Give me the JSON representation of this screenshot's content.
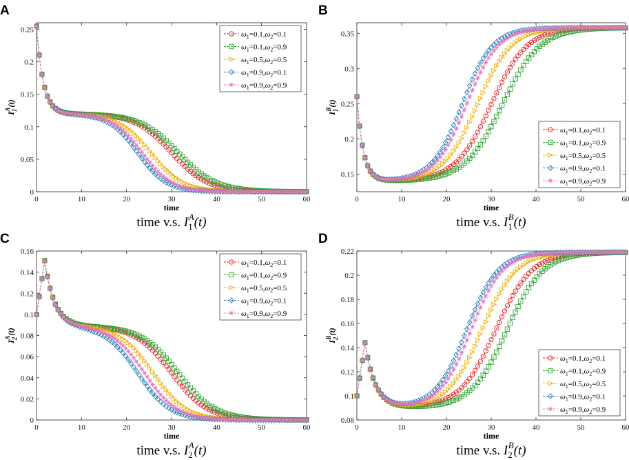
{
  "chart_data": [
    {
      "type": "line",
      "panel": "A",
      "ylabel": "I_1^A(t)",
      "ylabel_main": "I",
      "ylabel_sub": "1",
      "ylabel_sup": "A",
      "ylabel_tail": "(t)",
      "xlabel": "time",
      "caption": {
        "pre": "time v.s. ",
        "main": "I",
        "sub": "1",
        "sup": "A",
        "tail": "(t)"
      },
      "xlim": [
        0,
        60
      ],
      "ylim": [
        0,
        0.26
      ],
      "xticks": [
        "0",
        "10",
        "20",
        "30",
        "40",
        "50",
        "60"
      ],
      "yticks": [
        {
          "v": 0,
          "label": "0"
        },
        {
          "v": 0.05,
          "label": "0.05"
        },
        {
          "v": 0.1,
          "label": "0.1"
        },
        {
          "v": 0.15,
          "label": "0.15"
        },
        {
          "v": 0.2,
          "label": "0.2"
        },
        {
          "v": 0.25,
          "label": "0.25"
        }
      ],
      "legend_position": "top-right",
      "shape": "decay",
      "start": 0.255,
      "low": 0.12,
      "tau": 1.5,
      "end": 0.0,
      "series": [
        {
          "name": "ω1=0.1,ω2=0.1",
          "w1": "0.1",
          "w2": "0.1",
          "color": "#e41a1c",
          "marker": "circle",
          "mid": 30.0,
          "width": 4.0
        },
        {
          "name": "ω1=0.1,ω2=0.9",
          "w1": "0.1",
          "w2": "0.9",
          "color": "#2ca02c",
          "marker": "square",
          "mid": 31.5,
          "width": 4.2
        },
        {
          "name": "ω1=0.5,ω2=0.5",
          "w1": "0.5",
          "w2": "0.5",
          "color": "#f0b000",
          "marker": "triangle",
          "mid": 25.5,
          "width": 3.6
        },
        {
          "name": "ω1=0.9,ω2=0.1",
          "w1": "0.9",
          "w2": "0.1",
          "color": "#1f77b4",
          "marker": "diamond",
          "mid": 22.5,
          "width": 3.2
        },
        {
          "name": "ω1=0.9,ω2=0.9",
          "w1": "0.9",
          "w2": "0.9",
          "color": "#e377c2",
          "marker": "star",
          "mid": 23.5,
          "width": 3.3
        }
      ]
    },
    {
      "type": "line",
      "panel": "B",
      "ylabel": "I_1^B(t)",
      "ylabel_main": "I",
      "ylabel_sub": "1",
      "ylabel_sup": "B",
      "ylabel_tail": "(t)",
      "xlabel": "time",
      "caption": {
        "pre": "time v.s. ",
        "main": "I",
        "sub": "1",
        "sup": "B",
        "tail": "(t)"
      },
      "xlim": [
        0,
        60
      ],
      "ylim": [
        0.125,
        0.365
      ],
      "xticks": [
        "0",
        "10",
        "20",
        "30",
        "40",
        "50",
        "60"
      ],
      "yticks": [
        {
          "v": 0.15,
          "label": "0.15"
        },
        {
          "v": 0.2,
          "label": "0.2"
        },
        {
          "v": 0.25,
          "label": "0.25"
        },
        {
          "v": 0.3,
          "label": "0.3"
        },
        {
          "v": 0.35,
          "label": "0.35"
        }
      ],
      "legend_position": "bottom-right",
      "shape": "rise",
      "start": 0.26,
      "low": 0.14,
      "tau": 1.4,
      "end": 0.358,
      "series": [
        {
          "name": "ω1=0.1,ω2=0.1",
          "w1": "0.1",
          "w2": "0.1",
          "color": "#e41a1c",
          "marker": "circle",
          "mid": 30.0,
          "width": 4.0
        },
        {
          "name": "ω1=0.1,ω2=0.9",
          "w1": "0.1",
          "w2": "0.9",
          "color": "#2ca02c",
          "marker": "square",
          "mid": 32.5,
          "width": 4.2
        },
        {
          "name": "ω1=0.5,ω2=0.5",
          "w1": "0.5",
          "w2": "0.5",
          "color": "#f0b000",
          "marker": "triangle",
          "mid": 27.0,
          "width": 3.8
        },
        {
          "name": "ω1=0.9,ω2=0.1",
          "w1": "0.9",
          "w2": "0.1",
          "color": "#1f77b4",
          "marker": "diamond",
          "mid": 23.5,
          "width": 3.4
        },
        {
          "name": "ω1=0.9,ω2=0.9",
          "w1": "0.9",
          "w2": "0.9",
          "color": "#e377c2",
          "marker": "star",
          "mid": 24.5,
          "width": 3.5
        }
      ]
    },
    {
      "type": "line",
      "panel": "C",
      "ylabel": "I_2^A(t)",
      "ylabel_main": "I",
      "ylabel_sub": "2",
      "ylabel_sup": "A",
      "ylabel_tail": "(t)",
      "xlabel": "time",
      "caption": {
        "pre": "time v.s. ",
        "main": "I",
        "sub": "2",
        "sup": "A",
        "tail": "(t)"
      },
      "xlim": [
        0,
        60
      ],
      "ylim": [
        0,
        0.16
      ],
      "xticks": [
        "0",
        "10",
        "20",
        "30",
        "40",
        "50",
        "60"
      ],
      "yticks": [
        {
          "v": 0,
          "label": "0"
        },
        {
          "v": 0.02,
          "label": "0.02"
        },
        {
          "v": 0.04,
          "label": "0.04"
        },
        {
          "v": 0.06,
          "label": "0.06"
        },
        {
          "v": 0.08,
          "label": "0.08"
        },
        {
          "v": 0.1,
          "label": "0.1"
        },
        {
          "v": 0.12,
          "label": "0.12"
        },
        {
          "v": 0.14,
          "label": "0.14"
        },
        {
          "v": 0.16,
          "label": "0.16"
        }
      ],
      "legend_position": "top-right",
      "shape": "hump-decay",
      "start": 0.1,
      "peak": 0.151,
      "peak_t": 1.8,
      "low": 0.089,
      "tau": 2.2,
      "end": 0.0,
      "series": [
        {
          "name": "ω1=0.1,ω2=0.1",
          "w1": "0.1",
          "w2": "0.1",
          "color": "#e41a1c",
          "marker": "circle",
          "mid": 30.0,
          "width": 4.0
        },
        {
          "name": "ω1=0.1,ω2=0.9",
          "w1": "0.1",
          "w2": "0.9",
          "color": "#2ca02c",
          "marker": "square",
          "mid": 31.5,
          "width": 4.1
        },
        {
          "name": "ω1=0.5,ω2=0.5",
          "w1": "0.5",
          "w2": "0.5",
          "color": "#f0b000",
          "marker": "triangle",
          "mid": 26.0,
          "width": 3.7
        },
        {
          "name": "ω1=0.9,ω2=0.1",
          "w1": "0.9",
          "w2": "0.1",
          "color": "#1f77b4",
          "marker": "diamond",
          "mid": 22.5,
          "width": 3.6
        },
        {
          "name": "ω1=0.9,ω2=0.9",
          "w1": "0.9",
          "w2": "0.9",
          "color": "#e377c2",
          "marker": "star",
          "mid": 24.0,
          "width": 3.6
        }
      ]
    },
    {
      "type": "line",
      "panel": "D",
      "ylabel": "I_2^B(t)",
      "ylabel_main": "I",
      "ylabel_sub": "2",
      "ylabel_sup": "B",
      "ylabel_tail": "(t)",
      "xlabel": "time",
      "caption": {
        "pre": "time v.s. ",
        "main": "I",
        "sub": "2",
        "sup": "B",
        "tail": "(t)"
      },
      "xlim": [
        0,
        60
      ],
      "ylim": [
        0.08,
        0.22
      ],
      "xticks": [
        "0",
        "10",
        "20",
        "30",
        "40",
        "50",
        "60"
      ],
      "yticks": [
        {
          "v": 0.08,
          "label": "0.08"
        },
        {
          "v": 0.1,
          "label": "0.1"
        },
        {
          "v": 0.12,
          "label": "0.12"
        },
        {
          "v": 0.14,
          "label": "0.14"
        },
        {
          "v": 0.16,
          "label": "0.16"
        },
        {
          "v": 0.18,
          "label": "0.18"
        },
        {
          "v": 0.2,
          "label": "0.2"
        },
        {
          "v": 0.22,
          "label": "0.22"
        }
      ],
      "legend_position": "bottom-right",
      "shape": "hump-rise",
      "start": 0.1,
      "peak": 0.144,
      "peak_t": 1.8,
      "low": 0.09,
      "tau": 2.3,
      "end": 0.219,
      "series": [
        {
          "name": "ω1=0.1,ω2=0.1",
          "w1": "0.1",
          "w2": "0.1",
          "color": "#e41a1c",
          "marker": "circle",
          "mid": 31.0,
          "width": 4.0
        },
        {
          "name": "ω1=0.1,ω2=0.9",
          "w1": "0.1",
          "w2": "0.9",
          "color": "#2ca02c",
          "marker": "square",
          "mid": 33.5,
          "width": 4.0
        },
        {
          "name": "ω1=0.5,ω2=0.5",
          "w1": "0.5",
          "w2": "0.5",
          "color": "#f0b000",
          "marker": "triangle",
          "mid": 28.0,
          "width": 3.8
        },
        {
          "name": "ω1=0.9,ω2=0.1",
          "w1": "0.9",
          "w2": "0.1",
          "color": "#1f77b4",
          "marker": "diamond",
          "mid": 24.5,
          "width": 3.5
        },
        {
          "name": "ω1=0.9,ω2=0.9",
          "w1": "0.9",
          "w2": "0.9",
          "color": "#e377c2",
          "marker": "star",
          "mid": 25.5,
          "width": 3.5
        }
      ]
    }
  ]
}
